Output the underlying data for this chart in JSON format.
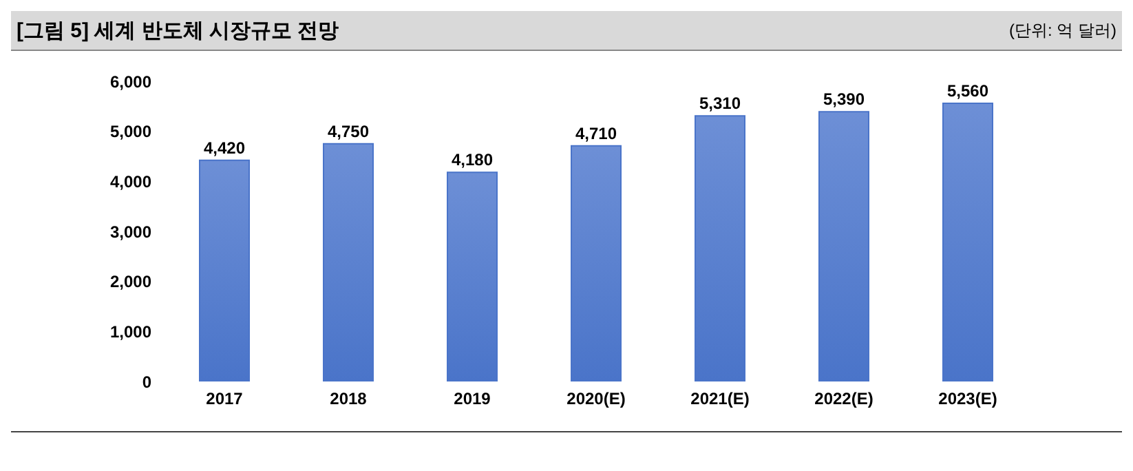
{
  "chart_data": {
    "type": "bar",
    "title": "[그림 5] 세계 반도체 시장규모 전망",
    "subtitle": "(단위: 억 달러)",
    "categories": [
      "2017",
      "2018",
      "2019",
      "2020(E)",
      "2021(E)",
      "2022(E)",
      "2023(E)"
    ],
    "values": [
      4420,
      4750,
      4180,
      4710,
      5310,
      5390,
      5560
    ],
    "value_labels": [
      "4,420",
      "4,750",
      "4,180",
      "4,710",
      "5,310",
      "5,390",
      "5,560"
    ],
    "color": "#4a74c9",
    "ylim": [
      0,
      6000
    ],
    "yticks": [
      {
        "value": 0,
        "label": "0"
      },
      {
        "value": 1000,
        "label": "1,000"
      },
      {
        "value": 2000,
        "label": "2,000"
      },
      {
        "value": 3000,
        "label": "3,000"
      },
      {
        "value": 4000,
        "label": "4,000"
      },
      {
        "value": 5000,
        "label": "5,000"
      },
      {
        "value": 6000,
        "label": "6,000"
      }
    ],
    "grid": false,
    "legend": false
  }
}
